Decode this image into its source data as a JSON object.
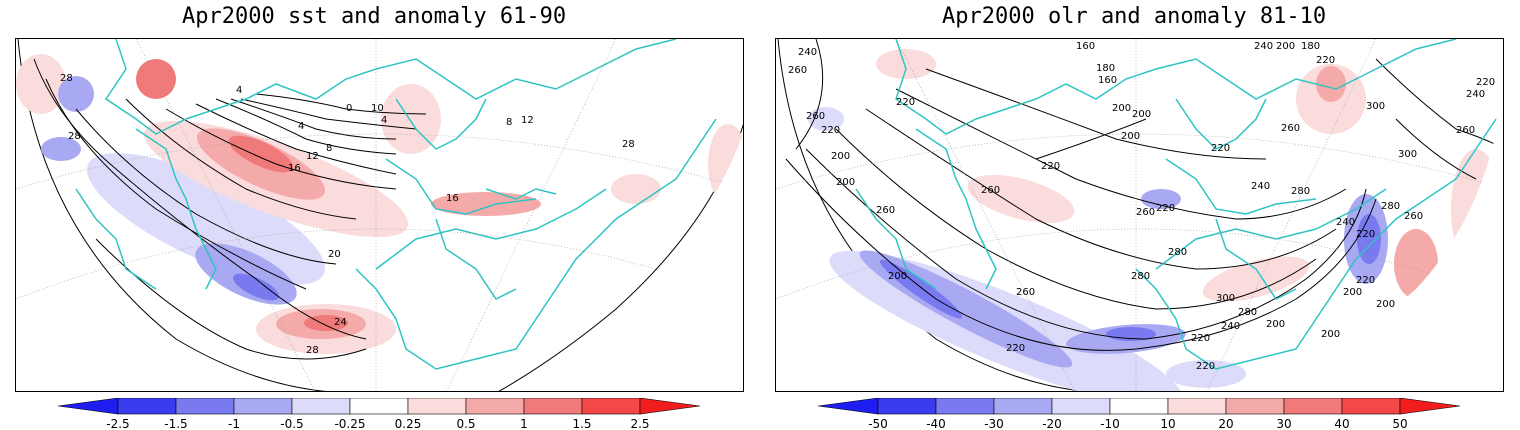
{
  "panels": [
    {
      "title": "Apr2000 sst and anomaly 61-90",
      "colorbar_labels": [
        "-2.5",
        "-1.5",
        "-1",
        "-0.5",
        "-0.25",
        "0.25",
        "0.5",
        "1",
        "1.5",
        "2.5"
      ],
      "contour_labels": [
        "28",
        "28",
        "4",
        "0",
        "10",
        "4",
        "4",
        "8",
        "12",
        "16",
        "16",
        "12",
        "8",
        "20",
        "24",
        "28",
        "28"
      ]
    },
    {
      "title": "Apr2000 olr and anomaly 81-10",
      "colorbar_labels": [
        "-50",
        "-40",
        "-30",
        "-20",
        "-10",
        "10",
        "20",
        "30",
        "40",
        "50"
      ],
      "contour_labels": [
        "240",
        "260",
        "220",
        "200",
        "160",
        "180",
        "160",
        "200",
        "200",
        "240",
        "200",
        "180",
        "220",
        "220",
        "300",
        "240",
        "260",
        "260",
        "220",
        "200",
        "260",
        "260",
        "220",
        "200",
        "240",
        "220",
        "260",
        "280",
        "220",
        "240",
        "300",
        "280",
        "260",
        "280",
        "220",
        "200",
        "260",
        "260",
        "280",
        "300",
        "280",
        "240",
        "220",
        "200",
        "220",
        "200",
        "200",
        "220",
        "220",
        "200"
      ]
    }
  ],
  "colors": {
    "coastline": "#2ec4c4",
    "blue_strong": "#3b3bf0",
    "blue_mid": "#7a7af0",
    "blue_light": "#a9a9f3",
    "blue_pale": "#dcdcfa",
    "red_pale": "#fbdcdc",
    "red_light": "#f5aaaa",
    "red_mid": "#f07a7a",
    "red_strong": "#f24848"
  }
}
